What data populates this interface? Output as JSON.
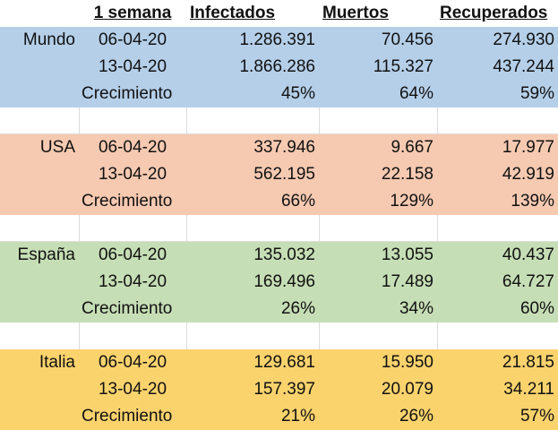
{
  "header": {
    "col1": "1 semana",
    "col2": "Infectados",
    "col3": "Muertos",
    "col4": "Recuperados"
  },
  "colors": {
    "mundo": "#b5cfe9",
    "usa": "#f6c9b1",
    "espana": "#c6deb5",
    "italia": "#fbd36d",
    "gridline": "#dcdcdc"
  },
  "groups": [
    {
      "region": "Mundo",
      "rows": [
        {
          "label": "06-04-20",
          "infectados": "1.286.391",
          "muertos": "70.456",
          "recuperados": "274.930"
        },
        {
          "label": "13-04-20",
          "infectados": "1.866.286",
          "muertos": "115.327",
          "recuperados": "437.244"
        },
        {
          "label": "Crecimiento",
          "infectados": "45%",
          "muertos": "64%",
          "recuperados": "59%"
        }
      ]
    },
    {
      "region": "USA",
      "rows": [
        {
          "label": "06-04-20",
          "infectados": "337.946",
          "muertos": "9.667",
          "recuperados": "17.977"
        },
        {
          "label": "13-04-20",
          "infectados": "562.195",
          "muertos": "22.158",
          "recuperados": "42.919"
        },
        {
          "label": "Crecimiento",
          "infectados": "66%",
          "muertos": "129%",
          "recuperados": "139%"
        }
      ]
    },
    {
      "region": "España",
      "rows": [
        {
          "label": "06-04-20",
          "infectados": "135.032",
          "muertos": "13.055",
          "recuperados": "40.437"
        },
        {
          "label": "13-04-20",
          "infectados": "169.496",
          "muertos": "17.489",
          "recuperados": "64.727"
        },
        {
          "label": "Crecimiento",
          "infectados": "26%",
          "muertos": "34%",
          "recuperados": "60%"
        }
      ]
    },
    {
      "region": "Italia",
      "rows": [
        {
          "label": "06-04-20",
          "infectados": "129.681",
          "muertos": "15.950",
          "recuperados": "21.815"
        },
        {
          "label": "13-04-20",
          "infectados": "157.397",
          "muertos": "20.079",
          "recuperados": "34.211"
        },
        {
          "label": "Crecimiento",
          "infectados": "21%",
          "muertos": "26%",
          "recuperados": "57%"
        }
      ]
    }
  ]
}
